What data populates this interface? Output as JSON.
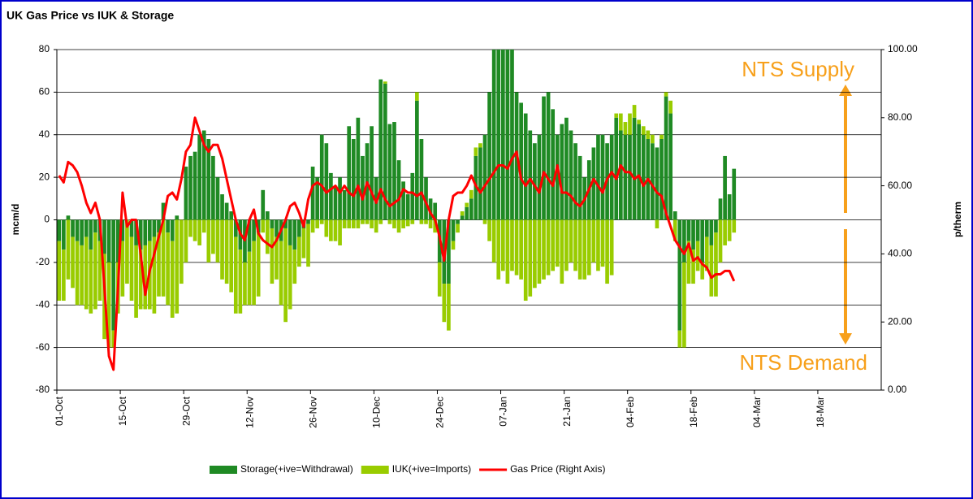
{
  "chart_data": {
    "type": "bar_line",
    "title": "UK Gas Price vs IUK  & Storage",
    "y_label": "mcm/d",
    "y2_label": "p/therm",
    "annotations": [
      "NTS Supply",
      "NTS Demand"
    ],
    "ylim": [
      -80,
      80
    ],
    "yticks": [
      -80,
      -60,
      -40,
      -20,
      0,
      20,
      40,
      60,
      80
    ],
    "y2lim": [
      0,
      100
    ],
    "y2ticks": [
      {
        "value": 0,
        "label": "0.00"
      },
      {
        "value": 20,
        "label": "20.00"
      },
      {
        "value": 40,
        "label": "40.00"
      },
      {
        "value": 60,
        "label": "60.00"
      },
      {
        "value": 80,
        "label": "80.00"
      },
      {
        "value": 100,
        "label": "100.00"
      }
    ],
    "grid": true,
    "legend": "bottom",
    "categories": [
      "01-Oct",
      null,
      null,
      null,
      null,
      null,
      null,
      null,
      null,
      null,
      null,
      null,
      null,
      null,
      "15-Oct",
      null,
      null,
      null,
      null,
      null,
      null,
      null,
      null,
      null,
      null,
      null,
      null,
      null,
      "29-Oct",
      null,
      null,
      null,
      null,
      null,
      null,
      null,
      null,
      null,
      null,
      null,
      null,
      null,
      "12-Nov",
      null,
      null,
      null,
      null,
      null,
      null,
      null,
      null,
      null,
      null,
      null,
      null,
      null,
      "26-Nov",
      null,
      null,
      null,
      null,
      null,
      null,
      null,
      null,
      null,
      null,
      null,
      null,
      null,
      "10-Dec",
      null,
      null,
      null,
      null,
      null,
      null,
      null,
      null,
      null,
      null,
      null,
      null,
      null,
      "24-Dec",
      null,
      null,
      null,
      null,
      null,
      null,
      null,
      null,
      null,
      null,
      null,
      null,
      null,
      "07-Jan",
      null,
      null,
      null,
      null,
      null,
      null,
      null,
      null,
      null,
      null,
      null,
      null,
      null,
      "21-Jan",
      null,
      null,
      null,
      null,
      null,
      null,
      null,
      null,
      null,
      null,
      null,
      null,
      null,
      "04-Feb",
      null,
      null,
      null,
      null,
      null,
      null,
      null,
      null,
      null,
      null,
      null,
      null,
      null,
      "18-Feb",
      null,
      null,
      null,
      null,
      null,
      null,
      null,
      null,
      null,
      null,
      null,
      null,
      null,
      "04-Mar",
      null,
      null,
      null,
      null,
      null,
      null,
      null,
      null,
      null,
      null,
      null,
      null,
      null,
      "18-Mar",
      null,
      null,
      null,
      null,
      null,
      null,
      null,
      null,
      null,
      null,
      null,
      null,
      null
    ],
    "series": [
      {
        "name": "Storage(+ive=Withdrawal)",
        "color": "#1f8a24",
        "kind": "bar",
        "values": [
          -10,
          -14,
          2,
          -8,
          -10,
          -12,
          -8,
          -14,
          -6,
          -10,
          -16,
          -20,
          -52,
          -20,
          -10,
          0,
          -8,
          -12,
          -14,
          -12,
          -10,
          -8,
          -6,
          8,
          -6,
          -10,
          2,
          0,
          25,
          30,
          32,
          40,
          42,
          38,
          30,
          20,
          12,
          8,
          4,
          -8,
          -14,
          -20,
          -15,
          -10,
          -6,
          14,
          4,
          -4,
          -8,
          -10,
          -4,
          -12,
          -14,
          -8,
          -4,
          -2,
          25,
          20,
          40,
          36,
          22,
          16,
          20,
          14,
          44,
          38,
          48,
          30,
          36,
          44,
          20,
          66,
          64,
          45,
          46,
          28,
          18,
          12,
          22,
          56,
          38,
          20,
          10,
          8,
          -20,
          -30,
          -30,
          -10,
          -2,
          2,
          6,
          10,
          30,
          34,
          40,
          60,
          80,
          80,
          80,
          80,
          80,
          60,
          55,
          50,
          42,
          36,
          40,
          58,
          60,
          52,
          40,
          45,
          48,
          42,
          36,
          30,
          20,
          28,
          34,
          40,
          40,
          36,
          40,
          48,
          42,
          40,
          40,
          48,
          45,
          40,
          38,
          36,
          34,
          38,
          58,
          50,
          4,
          -52,
          -20,
          -10,
          -14,
          -10,
          -20,
          -8,
          -12,
          -6,
          10,
          30,
          12,
          24,
          null,
          null,
          null,
          null,
          null,
          null,
          null,
          null,
          null,
          null,
          null,
          null,
          null,
          null,
          null,
          null,
          null,
          null,
          null,
          null,
          null,
          null,
          null,
          null,
          null,
          null,
          null,
          null,
          null,
          null,
          null,
          null
        ]
      },
      {
        "name": "IUK(+ive=Imports)",
        "color": "#99cc00",
        "kind": "bar",
        "values": [
          -28,
          -24,
          -28,
          -24,
          -30,
          -28,
          -34,
          -30,
          -36,
          -28,
          -40,
          -40,
          -8,
          -24,
          -26,
          -30,
          -30,
          -34,
          -28,
          -30,
          -32,
          -36,
          -30,
          -36,
          -34,
          -36,
          -44,
          -30,
          -20,
          -8,
          -10,
          -12,
          -6,
          -20,
          -16,
          -20,
          -28,
          -30,
          -34,
          -36,
          -30,
          -20,
          -25,
          -30,
          -30,
          -6,
          -16,
          -26,
          -20,
          -30,
          -44,
          -30,
          -16,
          -14,
          -14,
          -20,
          -6,
          -4,
          -2,
          -8,
          -10,
          -10,
          -12,
          -4,
          -4,
          -4,
          -4,
          -2,
          -2,
          -4,
          -6,
          -2,
          1,
          -2,
          -4,
          -6,
          -4,
          -3,
          -2,
          4,
          -2,
          -2,
          -4,
          -6,
          -16,
          -18,
          -22,
          -4,
          -4,
          2,
          2,
          4,
          4,
          2,
          -2,
          -10,
          -20,
          -28,
          -24,
          -30,
          -24,
          -26,
          -28,
          -38,
          -36,
          -32,
          -30,
          -28,
          -26,
          -24,
          -22,
          -30,
          -24,
          -20,
          -24,
          -28,
          -28,
          -26,
          -20,
          -24,
          -22,
          -30,
          -26,
          2,
          8,
          6,
          10,
          6,
          2,
          4,
          4,
          4,
          -4,
          2,
          2,
          6,
          -10,
          -8,
          -40,
          -20,
          -16,
          -14,
          -8,
          -16,
          -24,
          -30,
          -20,
          -12,
          -10,
          -6,
          null,
          null,
          null,
          null,
          null,
          null,
          null,
          null,
          null,
          null,
          null,
          null,
          null,
          null,
          null,
          null,
          null,
          null,
          null,
          null,
          null,
          null,
          null,
          null,
          null,
          null,
          null,
          null,
          null,
          null,
          null,
          null
        ]
      },
      {
        "name": "Gas Price (Right Axis)",
        "color": "#ff0000",
        "kind": "line",
        "axis": "y2",
        "values": [
          63,
          61,
          67,
          66,
          64,
          60,
          55,
          52,
          55,
          50,
          30,
          10,
          6,
          30,
          58,
          48,
          50,
          50,
          40,
          28,
          35,
          40,
          45,
          50,
          57,
          58,
          56,
          62,
          70,
          72,
          80,
          76,
          72,
          70,
          72,
          72,
          68,
          62,
          56,
          50,
          46,
          44,
          50,
          53,
          46,
          44,
          43,
          42,
          44,
          47,
          50,
          54,
          55,
          52,
          48,
          56,
          60,
          61,
          60,
          58,
          59,
          60,
          58,
          60,
          58,
          57,
          60,
          56,
          61,
          58,
          55,
          59,
          56,
          54,
          55,
          56,
          59,
          58,
          58,
          57,
          58,
          55,
          52,
          50,
          45,
          38,
          50,
          57,
          58,
          58,
          60,
          63,
          60,
          58,
          60,
          62,
          64,
          66,
          66,
          65,
          68,
          70,
          62,
          60,
          62,
          60,
          58,
          64,
          62,
          60,
          66,
          58,
          58,
          57,
          55,
          54,
          56,
          59,
          62,
          60,
          58,
          62,
          64,
          62,
          66,
          64,
          64,
          62,
          63,
          60,
          62,
          60,
          58,
          57,
          52,
          48,
          44,
          42,
          40,
          43,
          38,
          39,
          37,
          36,
          33,
          34,
          34,
          35,
          35,
          32,
          null,
          null,
          null,
          null,
          null,
          null,
          null,
          null,
          null,
          null,
          null,
          null,
          null,
          null,
          null,
          null,
          null,
          null,
          null,
          null,
          null,
          null,
          null,
          null,
          null,
          null,
          null,
          null,
          null,
          null,
          null,
          null
        ]
      }
    ]
  }
}
